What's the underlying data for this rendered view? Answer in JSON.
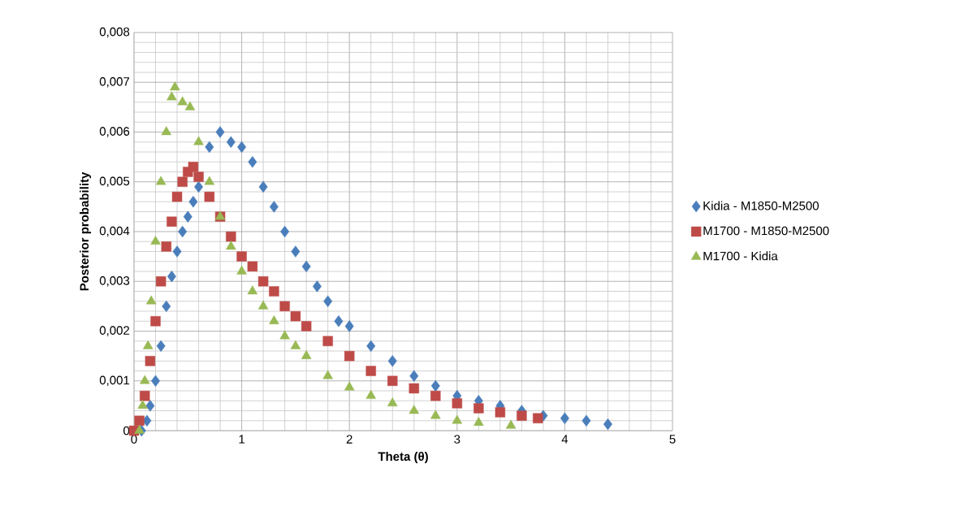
{
  "chart_data": {
    "type": "scatter",
    "xlabel": "Theta (θ)",
    "ylabel": "Posterior probability",
    "xlim": [
      0,
      5
    ],
    "ylim": [
      0,
      0.008
    ],
    "xticks": [
      0,
      1,
      2,
      3,
      4,
      5
    ],
    "yticks": [
      0,
      {
        "value": 0.001,
        "label": "0,001"
      },
      {
        "value": 0.002,
        "label": "0,002"
      },
      {
        "value": 0.003,
        "label": "0,003"
      },
      {
        "value": 0.004,
        "label": "0,004"
      },
      {
        "value": 0.005,
        "label": "0,005"
      },
      {
        "value": 0.006,
        "label": "0,006"
      },
      {
        "value": 0.007,
        "label": "0,007"
      },
      {
        "value": 0.008,
        "label": "0,008"
      }
    ],
    "grid": true,
    "legend": "right",
    "series": [
      {
        "name": "Kidia - M1850-M2500",
        "color": "#4a7ebb",
        "marker": "diamond",
        "x": [
          0.07,
          0.12,
          0.15,
          0.2,
          0.25,
          0.3,
          0.35,
          0.4,
          0.45,
          0.5,
          0.55,
          0.6,
          0.7,
          0.8,
          0.9,
          1.0,
          1.1,
          1.2,
          1.3,
          1.4,
          1.5,
          1.6,
          1.7,
          1.8,
          1.9,
          2.0,
          2.2,
          2.4,
          2.6,
          2.8,
          3.0,
          3.2,
          3.4,
          3.6,
          3.8,
          4.0,
          4.2,
          4.4
        ],
        "values": [
          0,
          0.0002,
          0.0005,
          0.001,
          0.0017,
          0.0025,
          0.0031,
          0.0036,
          0.004,
          0.0043,
          0.0046,
          0.0049,
          0.0057,
          0.006,
          0.0058,
          0.0057,
          0.0054,
          0.0049,
          0.0045,
          0.004,
          0.0036,
          0.0033,
          0.0029,
          0.0026,
          0.0022,
          0.0021,
          0.0017,
          0.0014,
          0.0011,
          0.0009,
          0.0007,
          0.0006,
          0.0005,
          0.0004,
          0.0003,
          0.00025,
          0.0002,
          0.00013
        ]
      },
      {
        "name": "M1700 - M1850-M2500",
        "color": "#be4b48",
        "marker": "square",
        "x": [
          0,
          0.05,
          0.1,
          0.15,
          0.2,
          0.25,
          0.3,
          0.35,
          0.4,
          0.45,
          0.5,
          0.55,
          0.6,
          0.7,
          0.8,
          0.9,
          1.0,
          1.1,
          1.2,
          1.3,
          1.4,
          1.5,
          1.6,
          1.8,
          2.0,
          2.2,
          2.4,
          2.6,
          2.8,
          3.0,
          3.2,
          3.4,
          3.6,
          3.75
        ],
        "values": [
          0,
          0.0002,
          0.0007,
          0.0014,
          0.0022,
          0.003,
          0.0037,
          0.0042,
          0.0047,
          0.005,
          0.0052,
          0.0053,
          0.0051,
          0.0047,
          0.0043,
          0.0039,
          0.0035,
          0.0033,
          0.003,
          0.0028,
          0.0025,
          0.0023,
          0.0021,
          0.0018,
          0.0015,
          0.0012,
          0.001,
          0.00085,
          0.0007,
          0.00055,
          0.00045,
          0.00037,
          0.0003,
          0.00025
        ]
      },
      {
        "name": "M1700 - Kidia",
        "color": "#98b954",
        "marker": "triangle",
        "x": [
          0.05,
          0.08,
          0.1,
          0.13,
          0.16,
          0.2,
          0.25,
          0.3,
          0.35,
          0.38,
          0.45,
          0.52,
          0.6,
          0.7,
          0.8,
          0.9,
          1.0,
          1.1,
          1.2,
          1.3,
          1.4,
          1.5,
          1.6,
          1.8,
          2.0,
          2.2,
          2.4,
          2.6,
          2.8,
          3.0,
          3.2,
          3.5
        ],
        "values": [
          0,
          0.0005,
          0.001,
          0.0017,
          0.0026,
          0.0038,
          0.005,
          0.006,
          0.0067,
          0.0069,
          0.0066,
          0.0065,
          0.0058,
          0.005,
          0.0043,
          0.0037,
          0.0032,
          0.0028,
          0.0025,
          0.0022,
          0.0019,
          0.0017,
          0.0015,
          0.0011,
          0.00087,
          0.0007,
          0.00055,
          0.0004,
          0.0003,
          0.0002,
          0.00016,
          0.0001
        ]
      }
    ]
  }
}
